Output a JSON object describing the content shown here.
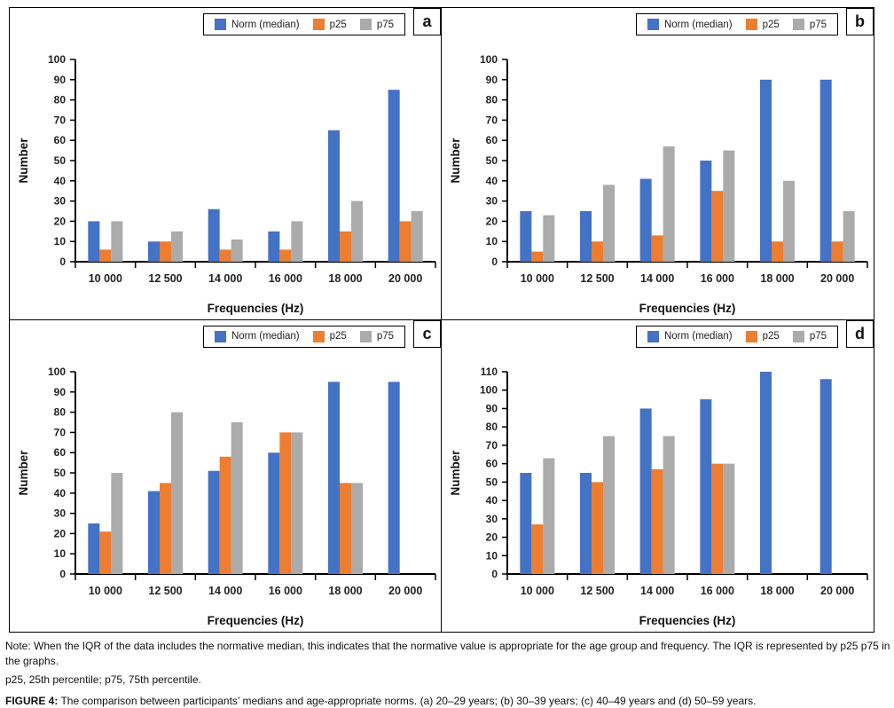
{
  "colors": {
    "norm": "#4472C4",
    "p25": "#ED7D31",
    "p75": "#ABABAB",
    "axis": "#000000"
  },
  "legend": {
    "position": "top",
    "items": [
      {
        "key": "norm",
        "label": "Norm (median)",
        "color": "#4472C4"
      },
      {
        "key": "p25",
        "label": "p25",
        "color": "#ED7D31"
      },
      {
        "key": "p75",
        "label": "p75",
        "color": "#ABABAB"
      }
    ]
  },
  "chart_data": [
    {
      "type": "bar",
      "panel": "a",
      "age_group": "20–29 years",
      "title": "",
      "xlabel": "Frequencies (Hz)",
      "ylabel": "Number",
      "ylim": [
        0,
        100
      ],
      "ytick_step": 10,
      "grid": false,
      "legend_position": "top",
      "categories": [
        "10 000",
        "12 500",
        "14 000",
        "16 000",
        "18 000",
        "20 000"
      ],
      "series": [
        {
          "name": "Norm (median)",
          "color": "#4472C4",
          "values": [
            20,
            10,
            26,
            15,
            65,
            85
          ]
        },
        {
          "name": "p25",
          "color": "#ED7D31",
          "values": [
            6,
            10,
            6,
            6,
            15,
            20
          ]
        },
        {
          "name": "p75",
          "color": "#ABABAB",
          "values": [
            20,
            15,
            11,
            20,
            30,
            25
          ]
        }
      ]
    },
    {
      "type": "bar",
      "panel": "b",
      "age_group": "30–39 years",
      "title": "",
      "xlabel": "Frequencies (Hz)",
      "ylabel": "Number",
      "ylim": [
        0,
        100
      ],
      "ytick_step": 10,
      "grid": false,
      "legend_position": "top",
      "categories": [
        "10 000",
        "12 500",
        "14 000",
        "16 000",
        "18 000",
        "20 000"
      ],
      "series": [
        {
          "name": "Norm (median)",
          "color": "#4472C4",
          "values": [
            25,
            25,
            41,
            50,
            90,
            90
          ]
        },
        {
          "name": "p25",
          "color": "#ED7D31",
          "values": [
            5,
            10,
            13,
            35,
            10,
            10
          ]
        },
        {
          "name": "p75",
          "color": "#ABABAB",
          "values": [
            23,
            38,
            57,
            55,
            40,
            25
          ]
        }
      ]
    },
    {
      "type": "bar",
      "panel": "c",
      "age_group": "40–49 years",
      "title": "",
      "xlabel": "Frequencies (Hz)",
      "ylabel": "Number",
      "ylim": [
        0,
        100
      ],
      "ytick_step": 10,
      "grid": false,
      "legend_position": "top",
      "categories": [
        "10 000",
        "12 500",
        "14 000",
        "16 000",
        "18 000",
        "20 000"
      ],
      "series": [
        {
          "name": "Norm (median)",
          "color": "#4472C4",
          "values": [
            25,
            41,
            51,
            60,
            95,
            95
          ]
        },
        {
          "name": "p25",
          "color": "#ED7D31",
          "values": [
            21,
            45,
            58,
            70,
            45,
            0
          ]
        },
        {
          "name": "p75",
          "color": "#ABABAB",
          "values": [
            50,
            80,
            75,
            70,
            45,
            0
          ]
        }
      ]
    },
    {
      "type": "bar",
      "panel": "d",
      "age_group": "50–59 years",
      "title": "",
      "xlabel": "Frequencies (Hz)",
      "ylabel": "Number",
      "ylim": [
        0,
        110
      ],
      "ytick_step": 10,
      "grid": false,
      "legend_position": "top",
      "categories": [
        "10 000",
        "12 500",
        "14 000",
        "16 000",
        "18 000",
        "20 000"
      ],
      "series": [
        {
          "name": "Norm (median)",
          "color": "#4472C4",
          "values": [
            55,
            55,
            90,
            95,
            110,
            106
          ]
        },
        {
          "name": "p25",
          "color": "#ED7D31",
          "values": [
            27,
            50,
            57,
            60,
            0,
            0
          ]
        },
        {
          "name": "p75",
          "color": "#ABABAB",
          "values": [
            63,
            75,
            75,
            60,
            0,
            0
          ]
        }
      ]
    }
  ],
  "notes": {
    "note_main": "Note: When the IQR of the data includes the normative median, this indicates that the normative value is appropriate for the age group and frequency. The IQR is represented by p25 p75 in the graphs.",
    "note_percentiles": "p25, 25th percentile; p75, 75th percentile.",
    "caption_label": "FIGURE 4:",
    "caption_text": " The comparison between participants’ medians and age-appropriate norms. (a) 20–29 years; (b) 30–39 years; (c) 40–49 years and (d) 50–59 years."
  }
}
